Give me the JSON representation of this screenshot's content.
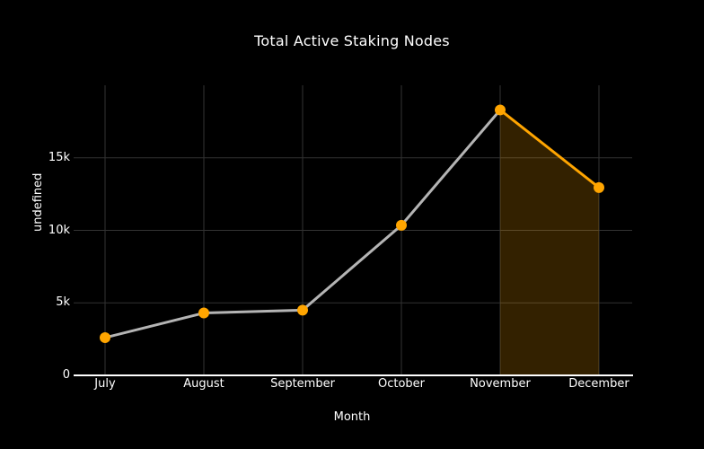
{
  "chart": {
    "title": "Total Active Staking Nodes",
    "xlabel": "Month",
    "ylabel": "undefined"
  },
  "chart_data": {
    "type": "line",
    "title": "Total Active Staking Nodes",
    "xlabel": "Month",
    "ylabel": "undefined",
    "categories": [
      "July",
      "August",
      "September",
      "October",
      "November",
      "December"
    ],
    "series": [
      {
        "name": "Total Active Staking Nodes",
        "values": [
          2600,
          4300,
          4500,
          10350,
          18300,
          12950
        ]
      }
    ],
    "ylim": [
      0,
      20000
    ],
    "yticks": [
      0,
      5000,
      10000,
      15000
    ],
    "ytick_labels": [
      "0",
      "5k",
      "10k",
      "15k"
    ],
    "grid": true,
    "legend": false,
    "highlight_region": {
      "from": "November",
      "to": "December",
      "fill_color": "#FFA500",
      "fill_opacity": 0.2
    },
    "colors": {
      "background": "#000000",
      "line_default": "#b4b4b4",
      "line_highlight": "#FFA500",
      "point": "#FFA500",
      "grid": "#333333",
      "axis": "#ffffff",
      "text": "#ffffff"
    }
  }
}
